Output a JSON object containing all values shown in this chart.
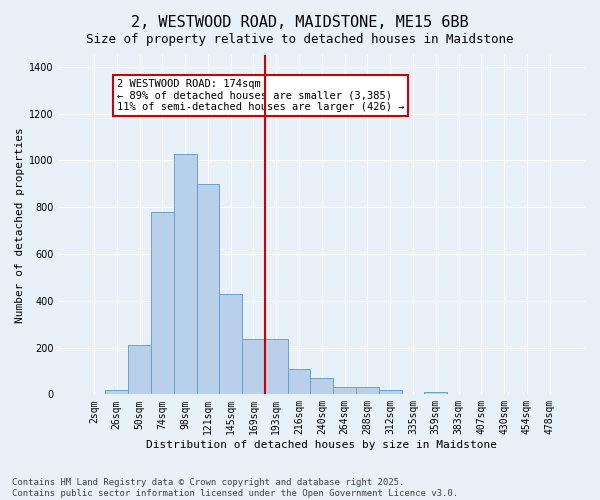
{
  "title": "2, WESTWOOD ROAD, MAIDSTONE, ME15 6BB",
  "subtitle": "Size of property relative to detached houses in Maidstone",
  "xlabel": "Distribution of detached houses by size in Maidstone",
  "ylabel": "Number of detached properties",
  "categories": [
    "2sqm",
    "26sqm",
    "50sqm",
    "74sqm",
    "98sqm",
    "121sqm",
    "145sqm",
    "169sqm",
    "193sqm",
    "216sqm",
    "240sqm",
    "264sqm",
    "288sqm",
    "312sqm",
    "335sqm",
    "359sqm",
    "383sqm",
    "407sqm",
    "430sqm",
    "454sqm",
    "478sqm"
  ],
  "values": [
    0,
    20,
    210,
    780,
    1025,
    900,
    430,
    235,
    235,
    110,
    70,
    30,
    30,
    20,
    0,
    10,
    0,
    0,
    0,
    0,
    0
  ],
  "bar_color": "#b8d0ea",
  "bar_edge_color": "#6aa0d0",
  "background_color": "#e8f0f8",
  "grid_color": "#ffffff",
  "vline_color": "#cc0000",
  "vline_x_index": 7.5,
  "annotation_text": "2 WESTWOOD ROAD: 174sqm\n← 89% of detached houses are smaller (3,385)\n11% of semi-detached houses are larger (426) →",
  "annotation_box_color": "#cc0000",
  "footer": "Contains HM Land Registry data © Crown copyright and database right 2025.\nContains public sector information licensed under the Open Government Licence v3.0.",
  "ylim": [
    0,
    1450
  ],
  "title_fontsize": 11,
  "subtitle_fontsize": 9,
  "label_fontsize": 8,
  "tick_fontsize": 7,
  "footer_fontsize": 6.5,
  "annot_fontsize": 7.5
}
